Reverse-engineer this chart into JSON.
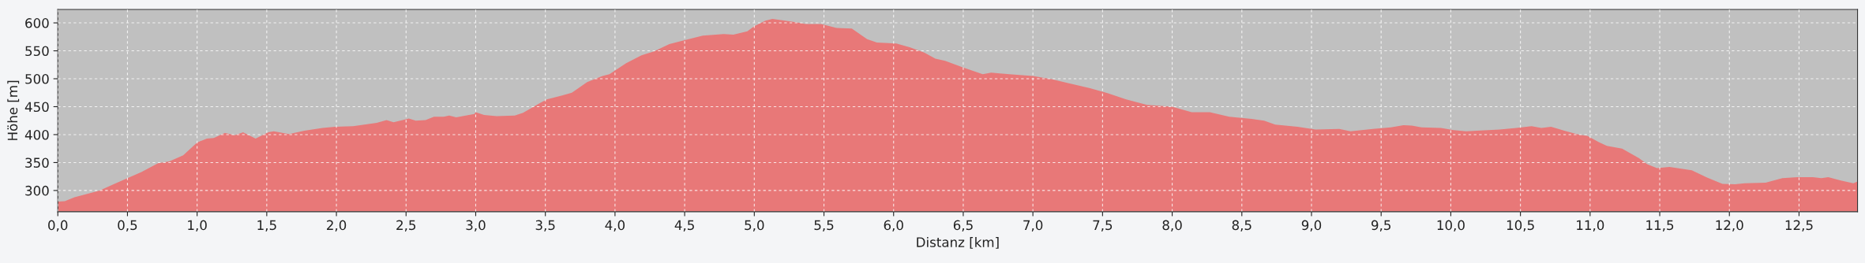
{
  "chart_data": {
    "type": "area",
    "xlabel": "Distanz [km]",
    "ylabel": "Höhe [m]",
    "xlim": [
      0,
      12.92
    ],
    "ylim": [
      262,
      624
    ],
    "xticks": [
      {
        "value": 0,
        "label": "0,0"
      },
      {
        "value": 0.5,
        "label": "0,5"
      },
      {
        "value": 1,
        "label": "1,0"
      },
      {
        "value": 1.5,
        "label": "1,5"
      },
      {
        "value": 2,
        "label": "2,0"
      },
      {
        "value": 2.5,
        "label": "2,5"
      },
      {
        "value": 3,
        "label": "3,0"
      },
      {
        "value": 3.5,
        "label": "3,5"
      },
      {
        "value": 4,
        "label": "4,0"
      },
      {
        "value": 4.5,
        "label": "4,5"
      },
      {
        "value": 5,
        "label": "5,0"
      },
      {
        "value": 5.5,
        "label": "5,5"
      },
      {
        "value": 6,
        "label": "6,0"
      },
      {
        "value": 6.5,
        "label": "6,5"
      },
      {
        "value": 7,
        "label": "7,0"
      },
      {
        "value": 7.5,
        "label": "7,5"
      },
      {
        "value": 8,
        "label": "8,0"
      },
      {
        "value": 8.5,
        "label": "8,5"
      },
      {
        "value": 9,
        "label": "9,0"
      },
      {
        "value": 9.5,
        "label": "9,5"
      },
      {
        "value": 10,
        "label": "10,0"
      },
      {
        "value": 10.5,
        "label": "10,5"
      },
      {
        "value": 11,
        "label": "11,0"
      },
      {
        "value": 11.5,
        "label": "11,5"
      },
      {
        "value": 12,
        "label": "12,0"
      },
      {
        "value": 12.5,
        "label": "12,5"
      }
    ],
    "yticks": [
      300,
      350,
      400,
      450,
      500,
      550,
      600
    ],
    "grid": true,
    "legend": false,
    "series": [
      {
        "color": "#e87878",
        "x": [
          0,
          0.05,
          0.12,
          0.2,
          0.3,
          0.4,
          0.5,
          0.6,
          0.72,
          0.8,
          0.9,
          1.0,
          1.07,
          1.12,
          1.2,
          1.27,
          1.33,
          1.42,
          1.51,
          1.55,
          1.66,
          1.77,
          1.9,
          1.99,
          2.12,
          2.29,
          2.36,
          2.41,
          2.52,
          2.57,
          2.64,
          2.7,
          2.77,
          2.81,
          2.86,
          2.99,
          3.0,
          3.06,
          3.15,
          3.28,
          3.34,
          3.45,
          3.51,
          3.62,
          3.69,
          3.8,
          3.91,
          3.96,
          4.08,
          4.19,
          4.28,
          4.39,
          4.5,
          4.63,
          4.78,
          4.85,
          4.95,
          5.0,
          5.08,
          5.13,
          5.28,
          5.37,
          5.48,
          5.59,
          5.7,
          5.81,
          5.88,
          6.02,
          6.12,
          6.22,
          6.3,
          6.37,
          6.5,
          6.64,
          6.7,
          6.83,
          7.0,
          7.14,
          7.24,
          7.41,
          7.54,
          7.67,
          7.82,
          8.0,
          8.14,
          8.27,
          8.41,
          8.57,
          8.66,
          8.74,
          8.9,
          9.03,
          9.2,
          9.28,
          9.44,
          9.57,
          9.66,
          9.72,
          9.79,
          9.93,
          10.02,
          10.11,
          10.35,
          10.47,
          10.58,
          10.65,
          10.72,
          10.83,
          10.92,
          10.98,
          11.06,
          11.12,
          11.23,
          11.35,
          11.41,
          11.48,
          11.57,
          11.73,
          11.84,
          11.95,
          12.04,
          12.11,
          12.26,
          12.38,
          12.49,
          12.6,
          12.66,
          12.71,
          12.8,
          12.89,
          12.92
        ],
        "values": [
          280,
          281,
          288,
          293,
          300,
          311,
          322,
          333,
          349,
          352,
          363,
          386,
          393,
          394,
          403,
          399,
          404,
          393,
          404,
          406,
          401,
          407,
          412,
          414,
          415,
          421,
          426,
          422,
          429,
          425,
          426,
          432,
          432,
          434,
          431,
          437,
          440,
          435,
          433,
          434,
          439,
          455,
          463,
          470,
          475,
          494,
          505,
          508,
          528,
          542,
          549,
          562,
          569,
          577,
          580,
          579,
          585,
          594,
          604,
          607,
          602,
          598,
          598,
          591,
          590,
          571,
          565,
          563,
          556,
          547,
          536,
          532,
          520,
          508,
          511,
          508,
          505,
          499,
          493,
          483,
          474,
          463,
          453,
          450,
          440,
          440,
          432,
          428,
          425,
          418,
          414,
          409,
          410,
          406,
          410,
          413,
          417,
          416,
          413,
          412,
          408,
          406,
          409,
          412,
          415,
          412,
          414,
          406,
          400,
          398,
          387,
          380,
          375,
          358,
          347,
          340,
          342,
          336,
          323,
          312,
          311,
          313,
          314,
          322,
          324,
          324,
          322,
          324,
          318,
          313,
          316
        ]
      }
    ]
  }
}
